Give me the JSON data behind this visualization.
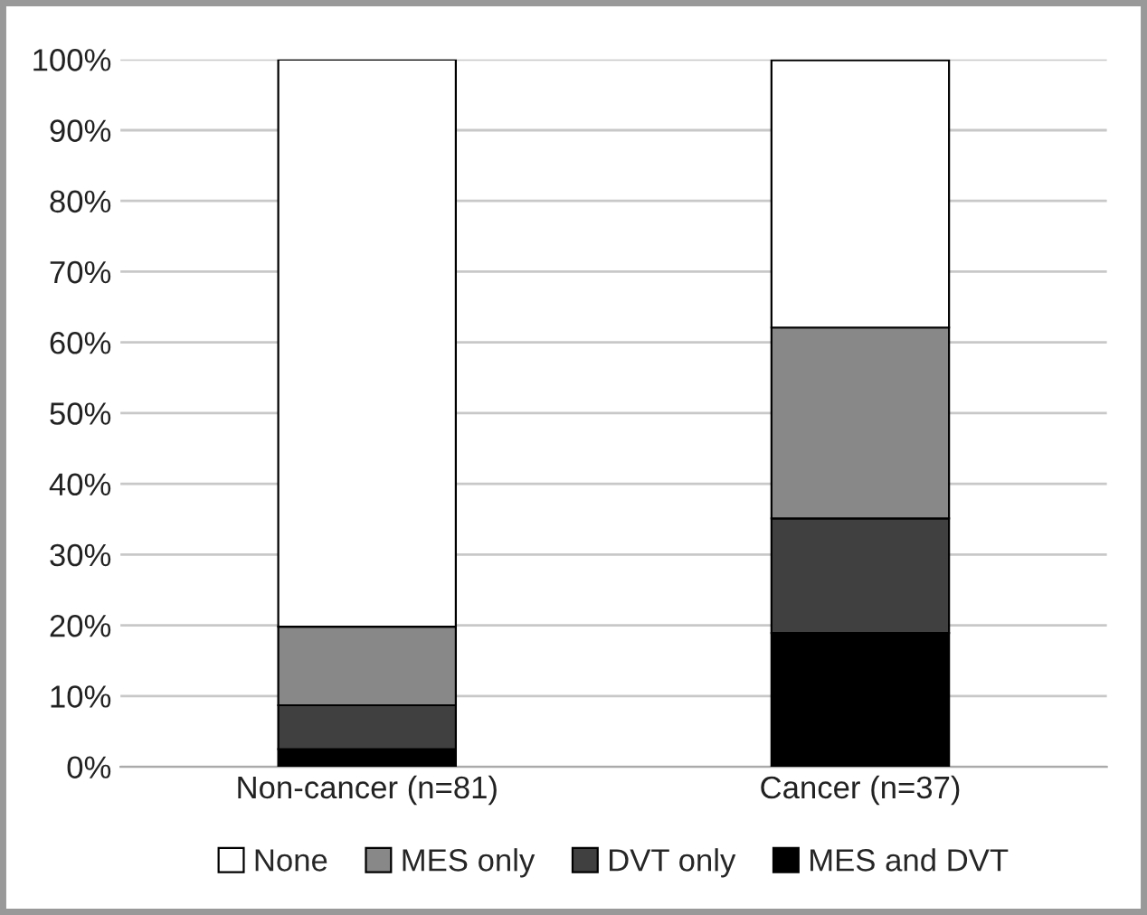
{
  "chart_data": {
    "type": "bar",
    "stacked": true,
    "categories": [
      "Non-cancer (n=81)",
      "Cancer (n=37)"
    ],
    "series": [
      {
        "name": "MES and DVT",
        "color": "#000000",
        "values": [
          2.5,
          18.9
        ]
      },
      {
        "name": "DVT only",
        "color": "#404040",
        "values": [
          6.2,
          16.2
        ]
      },
      {
        "name": "MES only",
        "color": "#888888",
        "values": [
          11.1,
          27.0
        ]
      },
      {
        "name": "None",
        "color": "#ffffff",
        "values": [
          80.2,
          37.8
        ]
      }
    ],
    "ylim": [
      0,
      100
    ],
    "yticks": [
      {
        "value": 0,
        "label": "0%"
      },
      {
        "value": 10,
        "label": "10%"
      },
      {
        "value": 20,
        "label": "20%"
      },
      {
        "value": 30,
        "label": "30%"
      },
      {
        "value": 40,
        "label": "40%"
      },
      {
        "value": 50,
        "label": "50%"
      },
      {
        "value": 60,
        "label": "60%"
      },
      {
        "value": 70,
        "label": "70%"
      },
      {
        "value": 80,
        "label": "80%"
      },
      {
        "value": 90,
        "label": "90%"
      },
      {
        "value": 100,
        "label": "100%"
      }
    ],
    "grid": "y",
    "legend": "bottom"
  }
}
